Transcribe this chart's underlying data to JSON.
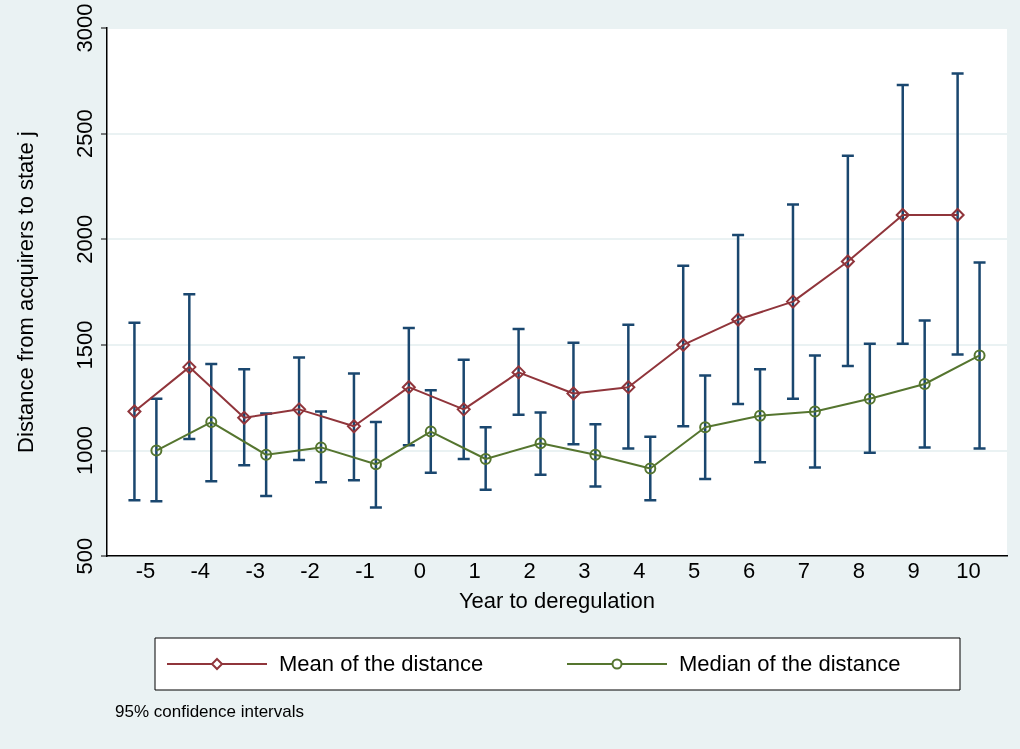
{
  "chart_data": {
    "type": "line",
    "xlabel": "Year to deregulation",
    "ylabel": "Distance from acquirers to state j",
    "xlim": [
      -5.7,
      10.7
    ],
    "xticks": [
      -5,
      -4,
      -3,
      -2,
      -1,
      0,
      1,
      2,
      3,
      4,
      5,
      6,
      7,
      8,
      9,
      10
    ],
    "ylim": [
      500,
      3000
    ],
    "yticks": [
      500,
      1000,
      1500,
      2000,
      2500,
      3000
    ],
    "grid": "y",
    "legend": "bottom",
    "line_style": "solid",
    "annotations": [
      "95% confidence intervals"
    ],
    "series": [
      {
        "name": "Mean of the distance",
        "color": "#90353b",
        "marker": "diamond",
        "x": [
          -5.2,
          -4.2,
          -3.2,
          -2.2,
          -1.2,
          -0.2,
          0.8,
          1.8,
          2.8,
          3.8,
          4.8,
          5.8,
          6.8,
          7.8,
          8.8,
          9.8
        ],
        "values": [
          1185,
          1395,
          1155,
          1195,
          1115,
          1300,
          1195,
          1370,
          1270,
          1300,
          1500,
          1620,
          1705,
          1895,
          2115,
          2115
        ],
        "errors": [
          [
            765,
            1605
          ],
          [
            1055,
            1740
          ],
          [
            930,
            1385
          ],
          [
            955,
            1440
          ],
          [
            860,
            1365
          ],
          [
            1025,
            1580
          ],
          [
            960,
            1430
          ],
          [
            1170,
            1575
          ],
          [
            1030,
            1510
          ],
          [
            1010,
            1595
          ],
          [
            1115,
            1875
          ],
          [
            1220,
            2020
          ],
          [
            1245,
            2165
          ],
          [
            1400,
            2395
          ],
          [
            1505,
            2730
          ],
          [
            1455,
            2785
          ]
        ]
      },
      {
        "name": "Median of the distance",
        "color": "#55752f",
        "marker": "circle",
        "x": [
          -4.8,
          -3.8,
          -2.8,
          -1.8,
          -0.8,
          0.2,
          1.2,
          2.2,
          3.2,
          4.2,
          5.2,
          6.2,
          7.2,
          8.2,
          9.2,
          10.2
        ],
        "values": [
          1000,
          1135,
          980,
          1015,
          935,
          1090,
          960,
          1035,
          980,
          915,
          1110,
          1165,
          1185,
          1245,
          1315,
          1450
        ],
        "errors": [
          [
            760,
            1245
          ],
          [
            855,
            1410
          ],
          [
            785,
            1175
          ],
          [
            850,
            1185
          ],
          [
            730,
            1135
          ],
          [
            895,
            1285
          ],
          [
            815,
            1110
          ],
          [
            885,
            1180
          ],
          [
            830,
            1125
          ],
          [
            765,
            1065
          ],
          [
            865,
            1355
          ],
          [
            945,
            1385
          ],
          [
            920,
            1450
          ],
          [
            990,
            1505
          ],
          [
            1015,
            1615
          ],
          [
            1010,
            1890
          ]
        ]
      }
    ]
  }
}
